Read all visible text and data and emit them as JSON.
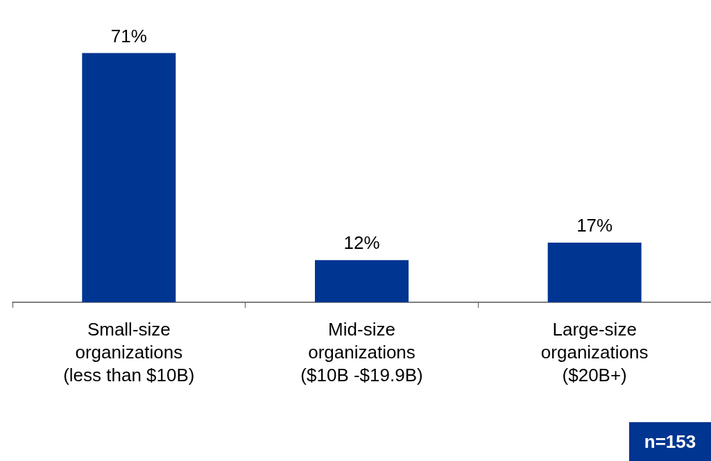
{
  "chart_data": {
    "type": "bar",
    "categories": [
      "Small-size\norganizations\n(less than $10B)",
      "Mid-size\norganizations\n($10B -$19.9B)",
      "Large-size\norganizations\n($20B+)"
    ],
    "values": [
      71,
      12,
      17
    ],
    "color": "#003591",
    "value_labels": [
      "71%",
      "12%",
      "17%"
    ],
    "annotations": [
      "n=153"
    ]
  }
}
